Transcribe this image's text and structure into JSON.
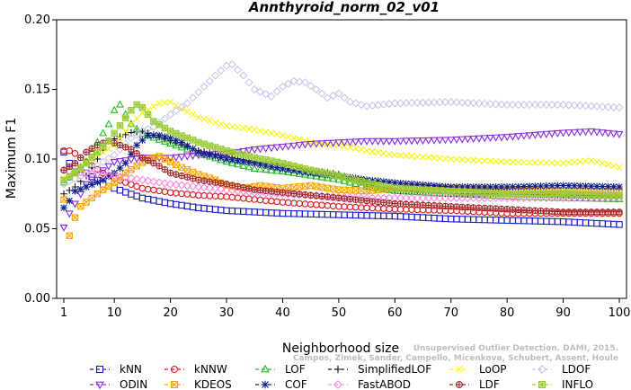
{
  "chart_data": {
    "type": "line",
    "title": "Annthyroid_norm_02_v01",
    "xlabel": "Neighborhood size",
    "ylabel": "Maximum F1",
    "xlim": [
      1,
      100
    ],
    "ylim": [
      0.0,
      0.2
    ],
    "xticks": [
      1,
      10,
      20,
      30,
      40,
      50,
      60,
      70,
      80,
      90,
      100
    ],
    "yticks": [
      "0.00",
      "0.05",
      "0.10",
      "0.15",
      "0.20"
    ],
    "grid": false,
    "legend_position": "bottom",
    "watermark_lines": [
      "Unsupervised Outlier Detection. DAMI, 2015.",
      "Campos, Zimek, Sander, Campello, Micenkova, Schubert, Assent, Houle"
    ],
    "series": [
      {
        "name": "kNN",
        "color": "#1a1acc",
        "marker": "square",
        "keys": [
          [
            1,
            0.105
          ],
          [
            2,
            0.097
          ],
          [
            3,
            0.095
          ],
          [
            5,
            0.09
          ],
          [
            8,
            0.082
          ],
          [
            10,
            0.079
          ],
          [
            15,
            0.072
          ],
          [
            20,
            0.068
          ],
          [
            25,
            0.065
          ],
          [
            30,
            0.063
          ],
          [
            40,
            0.061
          ],
          [
            50,
            0.06
          ],
          [
            60,
            0.059
          ],
          [
            70,
            0.057
          ],
          [
            80,
            0.056
          ],
          [
            90,
            0.055
          ],
          [
            100,
            0.053
          ]
        ]
      },
      {
        "name": "kNNW",
        "color": "#e0141a",
        "marker": "circle",
        "keys": [
          [
            1,
            0.106
          ],
          [
            2,
            0.106
          ],
          [
            3,
            0.104
          ],
          [
            5,
            0.098
          ],
          [
            8,
            0.09
          ],
          [
            10,
            0.086
          ],
          [
            15,
            0.079
          ],
          [
            20,
            0.076
          ],
          [
            25,
            0.074
          ],
          [
            30,
            0.073
          ],
          [
            40,
            0.069
          ],
          [
            50,
            0.066
          ],
          [
            60,
            0.064
          ],
          [
            70,
            0.063
          ],
          [
            80,
            0.061
          ],
          [
            90,
            0.061
          ],
          [
            100,
            0.061
          ]
        ]
      },
      {
        "name": "LOF",
        "color": "#22bb22",
        "marker": "triangle-up",
        "keys": [
          [
            1,
            0.083
          ],
          [
            3,
            0.09
          ],
          [
            5,
            0.098
          ],
          [
            7,
            0.112
          ],
          [
            9,
            0.125
          ],
          [
            10,
            0.135
          ],
          [
            11,
            0.139
          ],
          [
            13,
            0.125
          ],
          [
            15,
            0.118
          ],
          [
            20,
            0.111
          ],
          [
            25,
            0.104
          ],
          [
            30,
            0.098
          ],
          [
            35,
            0.093
          ],
          [
            40,
            0.091
          ],
          [
            45,
            0.088
          ],
          [
            50,
            0.085
          ],
          [
            55,
            0.08
          ],
          [
            60,
            0.077
          ],
          [
            70,
            0.075
          ],
          [
            80,
            0.073
          ],
          [
            90,
            0.072
          ],
          [
            100,
            0.071
          ]
        ]
      },
      {
        "name": "SimplifiedLOF",
        "color": "#111111",
        "marker": "plus",
        "keys": [
          [
            1,
            0.075
          ],
          [
            3,
            0.08
          ],
          [
            5,
            0.088
          ],
          [
            7,
            0.1
          ],
          [
            9,
            0.113
          ],
          [
            11,
            0.116
          ],
          [
            13,
            0.119
          ],
          [
            15,
            0.12
          ],
          [
            20,
            0.113
          ],
          [
            25,
            0.106
          ],
          [
            30,
            0.102
          ],
          [
            35,
            0.098
          ],
          [
            40,
            0.096
          ],
          [
            45,
            0.092
          ],
          [
            50,
            0.089
          ],
          [
            55,
            0.082
          ],
          [
            60,
            0.078
          ],
          [
            65,
            0.076
          ],
          [
            70,
            0.075
          ],
          [
            80,
            0.075
          ],
          [
            90,
            0.074
          ],
          [
            100,
            0.074
          ]
        ]
      },
      {
        "name": "LoOP",
        "color": "#f5f500",
        "marker": "x",
        "keys": [
          [
            1,
            0.086
          ],
          [
            3,
            0.091
          ],
          [
            5,
            0.098
          ],
          [
            8,
            0.105
          ],
          [
            10,
            0.11
          ],
          [
            13,
            0.125
          ],
          [
            15,
            0.133
          ],
          [
            18,
            0.14
          ],
          [
            20,
            0.141
          ],
          [
            22,
            0.136
          ],
          [
            25,
            0.13
          ],
          [
            30,
            0.124
          ],
          [
            35,
            0.121
          ],
          [
            40,
            0.117
          ],
          [
            45,
            0.112
          ],
          [
            50,
            0.11
          ],
          [
            55,
            0.106
          ],
          [
            60,
            0.103
          ],
          [
            70,
            0.1
          ],
          [
            80,
            0.098
          ],
          [
            90,
            0.097
          ],
          [
            95,
            0.099
          ],
          [
            100,
            0.094
          ]
        ]
      },
      {
        "name": "LDOF",
        "color": "#c7c7ee",
        "marker": "diamond",
        "keys": [
          [
            1,
            0.082
          ],
          [
            5,
            0.09
          ],
          [
            10,
            0.103
          ],
          [
            13,
            0.115
          ],
          [
            15,
            0.12
          ],
          [
            17,
            0.123
          ],
          [
            20,
            0.132
          ],
          [
            23,
            0.14
          ],
          [
            26,
            0.152
          ],
          [
            28,
            0.16
          ],
          [
            30,
            0.167
          ],
          [
            31,
            0.168
          ],
          [
            33,
            0.16
          ],
          [
            35,
            0.15
          ],
          [
            38,
            0.145
          ],
          [
            40,
            0.152
          ],
          [
            42,
            0.156
          ],
          [
            44,
            0.155
          ],
          [
            46,
            0.15
          ],
          [
            48,
            0.144
          ],
          [
            50,
            0.147
          ],
          [
            52,
            0.141
          ],
          [
            55,
            0.138
          ],
          [
            60,
            0.14
          ],
          [
            70,
            0.141
          ],
          [
            80,
            0.139
          ],
          [
            90,
            0.139
          ],
          [
            100,
            0.137
          ]
        ]
      },
      {
        "name": "ODIN",
        "color": "#8a2be2",
        "marker": "triangle-down",
        "keys": [
          [
            1,
            0.051
          ],
          [
            2,
            0.061
          ],
          [
            3,
            0.068
          ],
          [
            5,
            0.082
          ],
          [
            8,
            0.092
          ],
          [
            10,
            0.098
          ],
          [
            15,
            0.101
          ],
          [
            20,
            0.101
          ],
          [
            25,
            0.103
          ],
          [
            30,
            0.104
          ],
          [
            35,
            0.107
          ],
          [
            40,
            0.109
          ],
          [
            45,
            0.111
          ],
          [
            50,
            0.112
          ],
          [
            55,
            0.113
          ],
          [
            60,
            0.113
          ],
          [
            70,
            0.114
          ],
          [
            80,
            0.116
          ],
          [
            90,
            0.119
          ],
          [
            95,
            0.12
          ],
          [
            100,
            0.118
          ]
        ]
      },
      {
        "name": "KDEOS",
        "color": "#ffa500",
        "marker": "square-x",
        "keys": [
          [
            1,
            0.071
          ],
          [
            2,
            0.045
          ],
          [
            3,
            0.058
          ],
          [
            4,
            0.066
          ],
          [
            6,
            0.072
          ],
          [
            8,
            0.078
          ],
          [
            10,
            0.083
          ],
          [
            12,
            0.09
          ],
          [
            14,
            0.095
          ],
          [
            16,
            0.1
          ],
          [
            18,
            0.102
          ],
          [
            20,
            0.098
          ],
          [
            22,
            0.094
          ],
          [
            25,
            0.089
          ],
          [
            28,
            0.085
          ],
          [
            30,
            0.081
          ],
          [
            33,
            0.079
          ],
          [
            36,
            0.081
          ],
          [
            40,
            0.079
          ],
          [
            45,
            0.081
          ],
          [
            50,
            0.078
          ],
          [
            55,
            0.077
          ],
          [
            60,
            0.079
          ],
          [
            65,
            0.08
          ],
          [
            70,
            0.079
          ],
          [
            80,
            0.078
          ],
          [
            90,
            0.077
          ],
          [
            100,
            0.077
          ]
        ]
      },
      {
        "name": "COF",
        "color": "#0a1f8a",
        "marker": "asterisk",
        "keys": [
          [
            1,
            0.065
          ],
          [
            2,
            0.07
          ],
          [
            3,
            0.077
          ],
          [
            5,
            0.08
          ],
          [
            8,
            0.085
          ],
          [
            10,
            0.09
          ],
          [
            12,
            0.097
          ],
          [
            14,
            0.11
          ],
          [
            16,
            0.117
          ],
          [
            18,
            0.117
          ],
          [
            20,
            0.115
          ],
          [
            22,
            0.112
          ],
          [
            25,
            0.105
          ],
          [
            30,
            0.1
          ],
          [
            35,
            0.097
          ],
          [
            40,
            0.093
          ],
          [
            45,
            0.09
          ],
          [
            50,
            0.088
          ],
          [
            55,
            0.085
          ],
          [
            60,
            0.083
          ],
          [
            70,
            0.08
          ],
          [
            80,
            0.08
          ],
          [
            90,
            0.081
          ],
          [
            100,
            0.08
          ]
        ]
      },
      {
        "name": "FastABOD",
        "color": "#ff88dd",
        "marker": "diamond",
        "keys": [
          [
            1,
            0.092
          ],
          [
            5,
            0.09
          ],
          [
            10,
            0.088
          ],
          [
            15,
            0.085
          ],
          [
            20,
            0.082
          ],
          [
            25,
            0.08
          ],
          [
            30,
            0.078
          ],
          [
            35,
            0.076
          ],
          [
            40,
            0.075
          ],
          [
            45,
            0.074
          ],
          [
            50,
            0.073
          ],
          [
            55,
            0.072
          ]
        ]
      },
      {
        "name": "LDF",
        "color": "#a0282c",
        "marker": "circle-plus",
        "keys": [
          [
            1,
            0.092
          ],
          [
            3,
            0.097
          ],
          [
            5,
            0.105
          ],
          [
            7,
            0.11
          ],
          [
            9,
            0.113
          ],
          [
            11,
            0.11
          ],
          [
            13,
            0.107
          ],
          [
            15,
            0.101
          ],
          [
            18,
            0.095
          ],
          [
            20,
            0.09
          ],
          [
            25,
            0.085
          ],
          [
            30,
            0.082
          ],
          [
            35,
            0.078
          ],
          [
            40,
            0.076
          ],
          [
            45,
            0.074
          ],
          [
            50,
            0.072
          ],
          [
            55,
            0.07
          ],
          [
            60,
            0.068
          ],
          [
            65,
            0.067
          ],
          [
            70,
            0.066
          ],
          [
            75,
            0.065
          ],
          [
            80,
            0.064
          ],
          [
            85,
            0.063
          ],
          [
            90,
            0.062
          ],
          [
            95,
            0.062
          ],
          [
            100,
            0.062
          ]
        ]
      },
      {
        "name": "INFLO",
        "color": "#99cc33",
        "marker": "square-star",
        "keys": [
          [
            1,
            0.085
          ],
          [
            3,
            0.09
          ],
          [
            5,
            0.097
          ],
          [
            7,
            0.105
          ],
          [
            9,
            0.113
          ],
          [
            11,
            0.124
          ],
          [
            13,
            0.135
          ],
          [
            14,
            0.139
          ],
          [
            15,
            0.137
          ],
          [
            17,
            0.127
          ],
          [
            20,
            0.12
          ],
          [
            25,
            0.112
          ],
          [
            30,
            0.106
          ],
          [
            35,
            0.101
          ],
          [
            40,
            0.097
          ],
          [
            45,
            0.092
          ],
          [
            50,
            0.088
          ],
          [
            55,
            0.083
          ],
          [
            60,
            0.079
          ],
          [
            70,
            0.077
          ],
          [
            80,
            0.075
          ],
          [
            90,
            0.075
          ],
          [
            100,
            0.074
          ]
        ]
      }
    ]
  }
}
